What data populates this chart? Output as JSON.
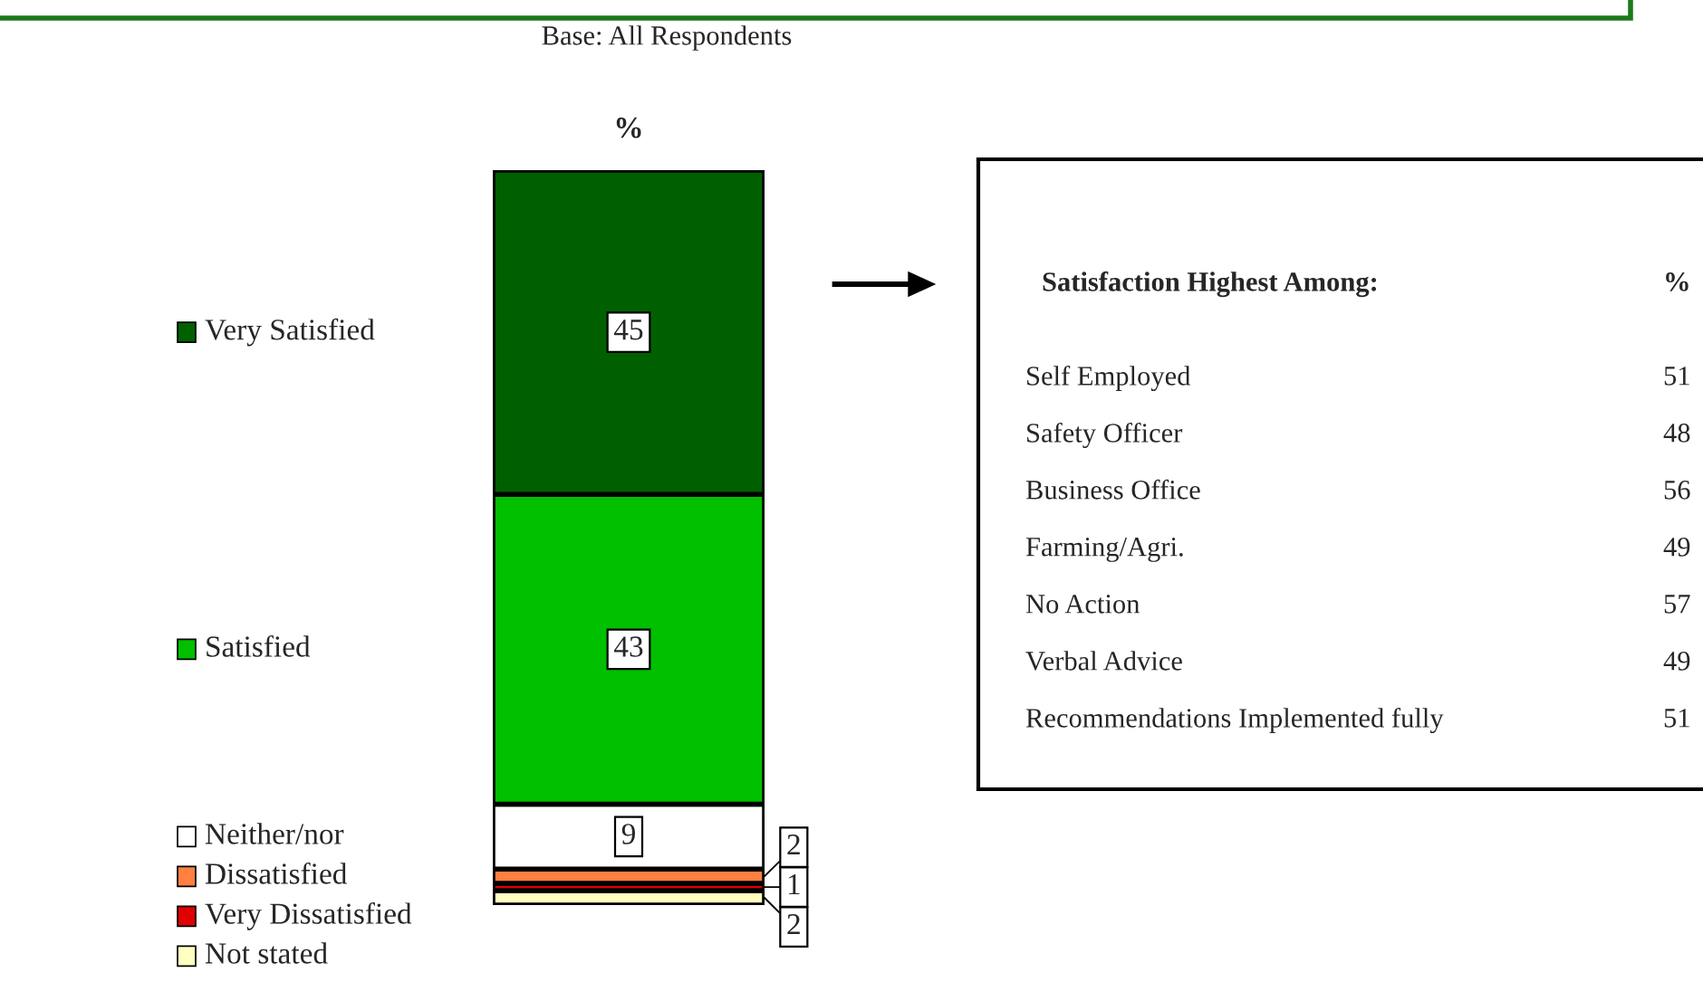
{
  "chart_data": [
    {
      "type": "bar",
      "title": "%",
      "subtitle": "Base: All Respondents",
      "stacked": true,
      "data_labels": true,
      "legend": "left",
      "categories": [
        null
      ],
      "series": [
        {
          "name": "Not stated",
          "color": "#ffffc0",
          "values": [
            2
          ]
        },
        {
          "name": "Very Dissatisfied",
          "color": "#e00000",
          "values": [
            1
          ]
        },
        {
          "name": "Dissatisfied",
          "color": "#ff8040",
          "values": [
            2
          ]
        },
        {
          "name": "Neither/nor",
          "color": "#ffffff",
          "values": [
            9
          ]
        },
        {
          "name": "Satisfied",
          "color": "#00c000",
          "values": [
            43
          ]
        },
        {
          "name": "Very Satisfied",
          "color": "#006000",
          "values": [
            45
          ]
        }
      ]
    },
    {
      "type": "other",
      "title": "Satisfaction Highest Among:",
      "xlabel": "%",
      "data_labels": true,
      "categories": [
        "Self Employed",
        "Safety Officer",
        "Business Office",
        "Farming/Agri.",
        "No Action",
        "Verbal Advice",
        "Recommendations Implemented fully"
      ],
      "values": [
        51,
        48,
        56,
        49,
        57,
        49,
        51
      ]
    }
  ]
}
